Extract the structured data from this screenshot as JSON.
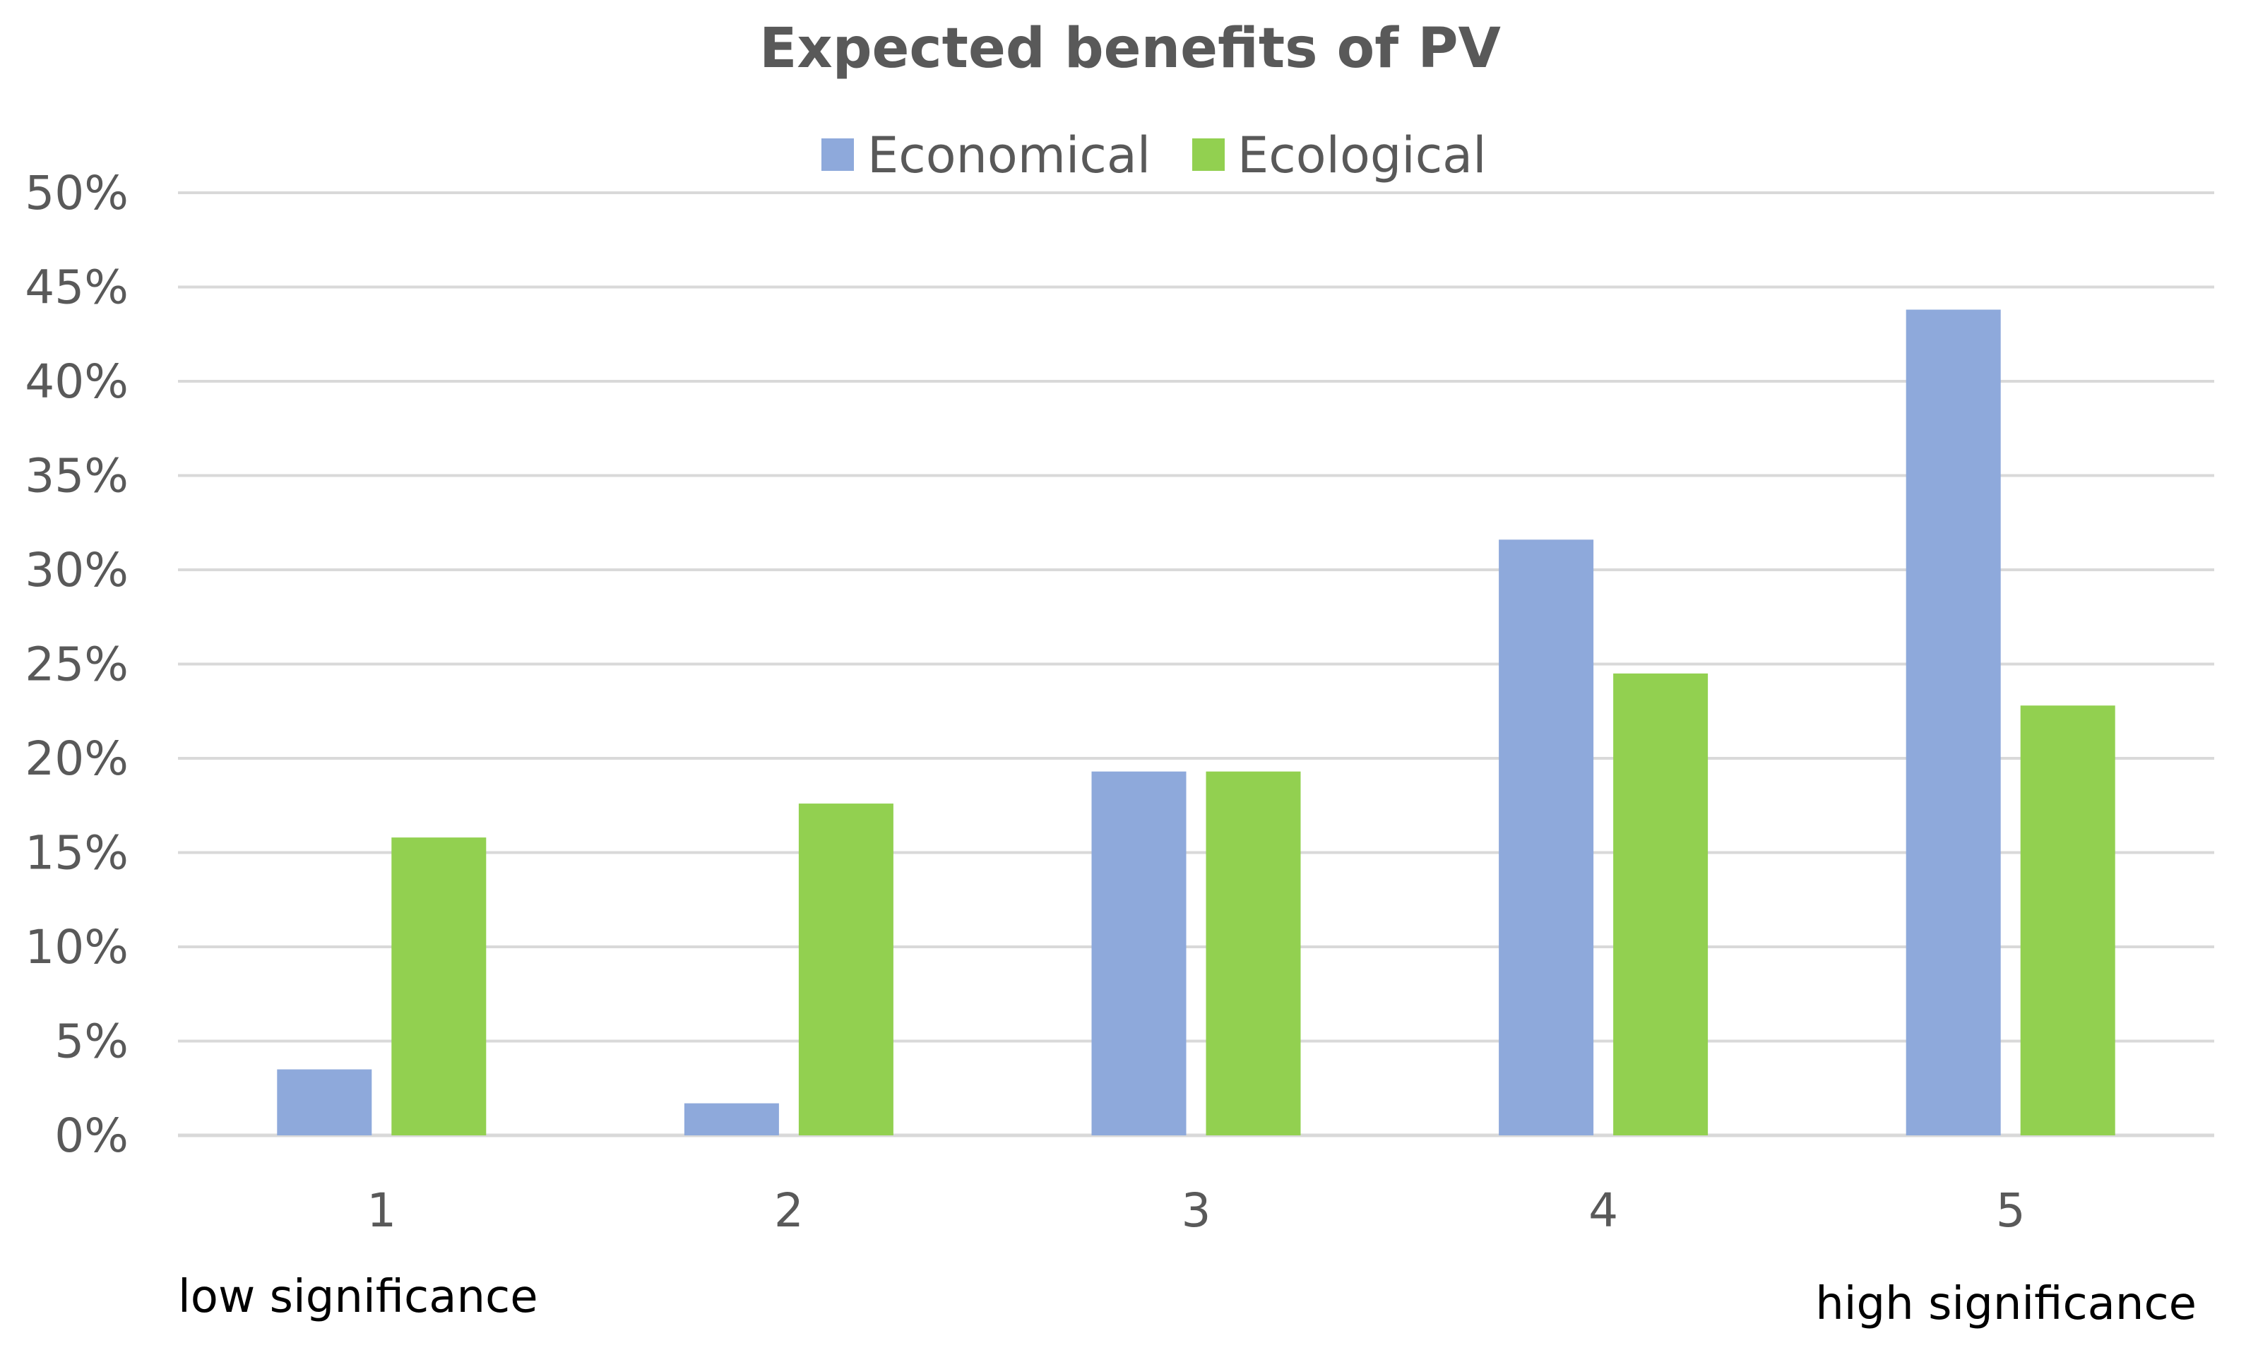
{
  "chart_data": {
    "type": "bar",
    "title": "Expected benefits of PV",
    "categories": [
      "1",
      "2",
      "3",
      "4",
      "5"
    ],
    "series": [
      {
        "name": "Economical",
        "color": "#8EA9DB",
        "values": [
          3.5,
          1.7,
          19.3,
          31.6,
          43.8
        ]
      },
      {
        "name": "Ecological",
        "color": "#92D050",
        "values": [
          15.8,
          17.6,
          19.3,
          24.5,
          22.8
        ]
      }
    ],
    "ylim": [
      0,
      50
    ],
    "yticks": [
      "0%",
      "5%",
      "10%",
      "15%",
      "20%",
      "25%",
      "30%",
      "35%",
      "40%",
      "45%",
      "50%"
    ],
    "xlabel": "",
    "ylabel": "",
    "grid": true,
    "legend": "top-center",
    "annotations": {
      "low": "low significance",
      "high": "high significance"
    }
  },
  "colors": {
    "grid": "#D9D9D9",
    "axis_text": "#595959"
  }
}
